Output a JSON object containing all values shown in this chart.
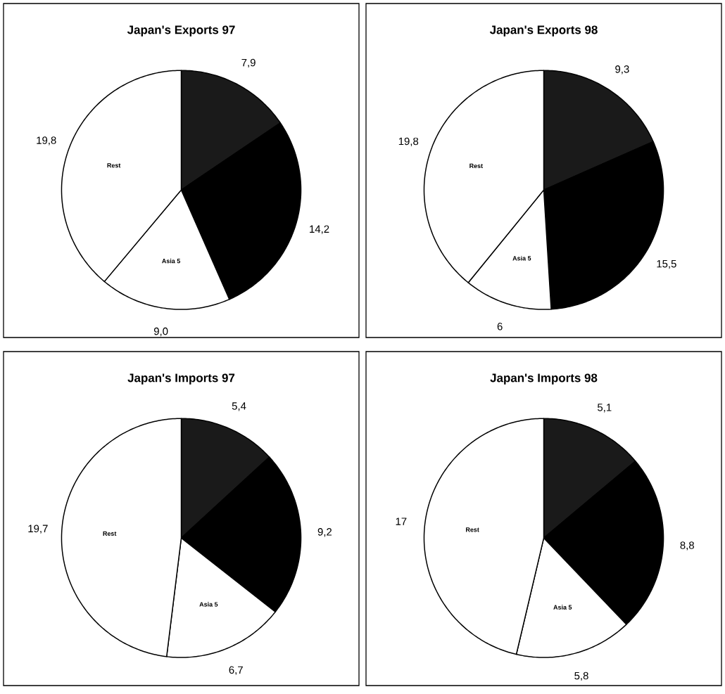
{
  "chart_data": [
    {
      "type": "pie",
      "title": "Japan's Exports 97",
      "categories": [
        null,
        null,
        "Asia 5",
        "Rest"
      ],
      "values": [
        7.9,
        14.2,
        9.0,
        19.8
      ],
      "value_labels": [
        "7,9",
        "14,2",
        "9,0",
        "19,8"
      ],
      "colors": [
        "#1a1a1a",
        "#000000",
        "#ffffff",
        "#ffffff"
      ]
    },
    {
      "type": "pie",
      "title": "Japan's Exports 98",
      "categories": [
        null,
        null,
        "Asia 5",
        "Rest"
      ],
      "values": [
        9.3,
        15.5,
        6,
        19.8
      ],
      "value_labels": [
        "9,3",
        "15,5",
        "6",
        "19,8"
      ],
      "colors": [
        "#1a1a1a",
        "#000000",
        "#ffffff",
        "#ffffff"
      ]
    },
    {
      "type": "pie",
      "title": "Japan's Imports 97",
      "categories": [
        null,
        null,
        "Asia 5",
        "Rest"
      ],
      "values": [
        5.4,
        9.2,
        6.7,
        19.7
      ],
      "value_labels": [
        "5,4",
        "9,2",
        "6,7",
        "19,7"
      ],
      "colors": [
        "#1a1a1a",
        "#000000",
        "#ffffff",
        "#ffffff"
      ]
    },
    {
      "type": "pie",
      "title": "Japan's Imports 98",
      "categories": [
        null,
        null,
        "Asia 5",
        "Rest"
      ],
      "values": [
        5.1,
        8.8,
        5.8,
        17
      ],
      "value_labels": [
        "5,1",
        "8,8",
        "5,8",
        "17"
      ],
      "colors": [
        "#1a1a1a",
        "#000000",
        "#ffffff",
        "#ffffff"
      ]
    }
  ]
}
